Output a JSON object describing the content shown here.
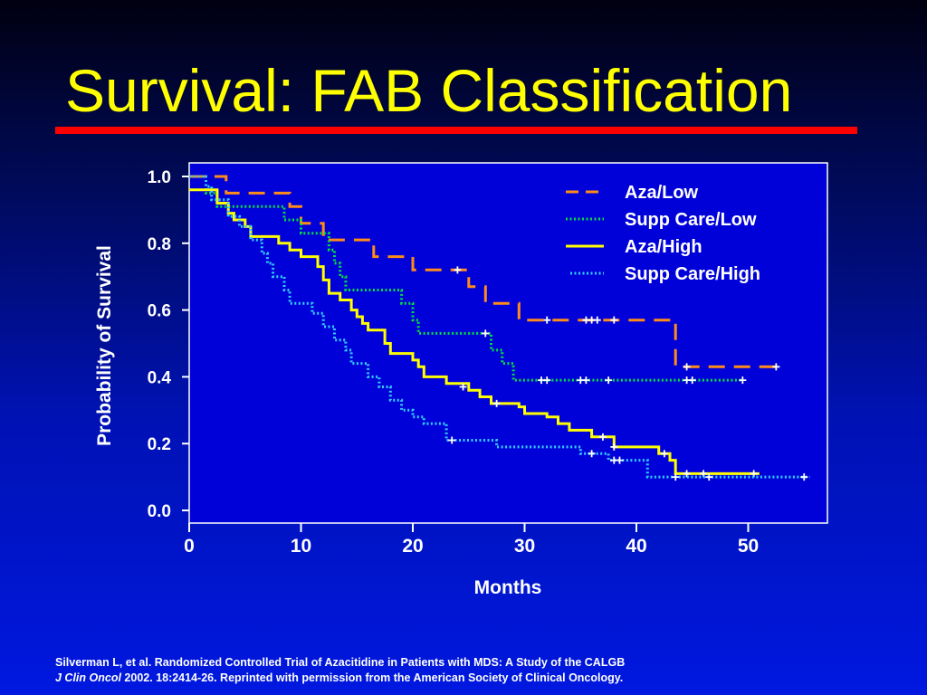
{
  "slide": {
    "title": "Survival: FAB Classification",
    "citation_line1": "Silverman L, et al. Randomized Controlled Trial of Azacitidine in Patients with MDS: A Study of the CALGB",
    "citation_journal": "J Clin Oncol",
    "citation_line2_rest": " 2002. 18:2414-26. Reprinted with permission from the American Society of Clinical Oncology."
  },
  "colors": {
    "title": "#ffff00",
    "rule": "#ff0000",
    "plot_bg": "#0000d8",
    "axis": "#ffffff"
  },
  "chart_data": {
    "type": "line",
    "xlabel": "Months",
    "ylabel": "Probability of Survival",
    "xlim": [
      0,
      57
    ],
    "ylim": [
      0,
      1.04
    ],
    "x_ticks": [
      0,
      10,
      20,
      30,
      40,
      50
    ],
    "y_ticks": [
      "0.0",
      "0.2",
      "0.4",
      "0.6",
      "0.8",
      "1.0"
    ],
    "grid": false,
    "legend_position": "top-right",
    "series": [
      {
        "name": "Aza/Low",
        "color": "#ff8c1a",
        "style": "dash",
        "points": [
          [
            0,
            1.0
          ],
          [
            3.3,
            1.0
          ],
          [
            3.3,
            0.95
          ],
          [
            9,
            0.95
          ],
          [
            9,
            0.91
          ],
          [
            10,
            0.91
          ],
          [
            10,
            0.86
          ],
          [
            12,
            0.86
          ],
          [
            12,
            0.81
          ],
          [
            16.5,
            0.81
          ],
          [
            16.5,
            0.76
          ],
          [
            20,
            0.76
          ],
          [
            20,
            0.72
          ],
          [
            25,
            0.72
          ],
          [
            25,
            0.67
          ],
          [
            26.5,
            0.67
          ],
          [
            26.5,
            0.62
          ],
          [
            29.5,
            0.62
          ],
          [
            29.5,
            0.57
          ],
          [
            43.5,
            0.57
          ],
          [
            43.5,
            0.43
          ],
          [
            53,
            0.43
          ]
        ],
        "censored": [
          [
            24,
            0.72
          ],
          [
            32,
            0.57
          ],
          [
            35.5,
            0.57
          ],
          [
            36,
            0.57
          ],
          [
            36.5,
            0.57
          ],
          [
            38,
            0.57
          ],
          [
            44.5,
            0.43
          ],
          [
            52.5,
            0.43
          ]
        ]
      },
      {
        "name": "Supp Care/Low",
        "color": "#00e040",
        "style": "dot",
        "points": [
          [
            0,
            1.0
          ],
          [
            1.5,
            1.0
          ],
          [
            1.5,
            0.95
          ],
          [
            2.5,
            0.95
          ],
          [
            2.5,
            0.91
          ],
          [
            8.5,
            0.91
          ],
          [
            8.5,
            0.87
          ],
          [
            10,
            0.87
          ],
          [
            10,
            0.83
          ],
          [
            12.5,
            0.83
          ],
          [
            12.5,
            0.78
          ],
          [
            13,
            0.78
          ],
          [
            13,
            0.74
          ],
          [
            13.5,
            0.74
          ],
          [
            13.5,
            0.7
          ],
          [
            14,
            0.7
          ],
          [
            14,
            0.66
          ],
          [
            19,
            0.66
          ],
          [
            19,
            0.62
          ],
          [
            20,
            0.62
          ],
          [
            20,
            0.57
          ],
          [
            20.5,
            0.57
          ],
          [
            20.5,
            0.53
          ],
          [
            27,
            0.53
          ],
          [
            27,
            0.48
          ],
          [
            28,
            0.48
          ],
          [
            28,
            0.44
          ],
          [
            29,
            0.44
          ],
          [
            29,
            0.39
          ],
          [
            49.5,
            0.39
          ]
        ],
        "censored": [
          [
            26.5,
            0.53
          ],
          [
            31.5,
            0.39
          ],
          [
            32,
            0.39
          ],
          [
            35,
            0.39
          ],
          [
            35.5,
            0.39
          ],
          [
            37.5,
            0.39
          ],
          [
            44.5,
            0.39
          ],
          [
            45,
            0.39
          ],
          [
            49.5,
            0.39
          ]
        ]
      },
      {
        "name": "Aza/High",
        "color": "#ffff00",
        "style": "solid",
        "points": [
          [
            0,
            0.96
          ],
          [
            2.5,
            0.96
          ],
          [
            2.5,
            0.92
          ],
          [
            3.5,
            0.92
          ],
          [
            3.5,
            0.89
          ],
          [
            4,
            0.89
          ],
          [
            4,
            0.87
          ],
          [
            5,
            0.87
          ],
          [
            5,
            0.85
          ],
          [
            5.5,
            0.85
          ],
          [
            5.5,
            0.82
          ],
          [
            8,
            0.82
          ],
          [
            8,
            0.8
          ],
          [
            9,
            0.8
          ],
          [
            9,
            0.78
          ],
          [
            10,
            0.78
          ],
          [
            10,
            0.76
          ],
          [
            11.5,
            0.76
          ],
          [
            11.5,
            0.73
          ],
          [
            12,
            0.73
          ],
          [
            12,
            0.69
          ],
          [
            12.5,
            0.69
          ],
          [
            12.5,
            0.65
          ],
          [
            13.5,
            0.65
          ],
          [
            13.5,
            0.63
          ],
          [
            14.5,
            0.63
          ],
          [
            14.5,
            0.6
          ],
          [
            15,
            0.6
          ],
          [
            15,
            0.58
          ],
          [
            15.5,
            0.58
          ],
          [
            15.5,
            0.56
          ],
          [
            16,
            0.56
          ],
          [
            16,
            0.54
          ],
          [
            17.5,
            0.54
          ],
          [
            17.5,
            0.5
          ],
          [
            18,
            0.5
          ],
          [
            18,
            0.47
          ],
          [
            20,
            0.47
          ],
          [
            20,
            0.45
          ],
          [
            20.5,
            0.45
          ],
          [
            20.5,
            0.43
          ],
          [
            21,
            0.43
          ],
          [
            21,
            0.4
          ],
          [
            23,
            0.4
          ],
          [
            23,
            0.38
          ],
          [
            25,
            0.38
          ],
          [
            25,
            0.36
          ],
          [
            26,
            0.36
          ],
          [
            26,
            0.34
          ],
          [
            27,
            0.34
          ],
          [
            27,
            0.32
          ],
          [
            29.5,
            0.32
          ],
          [
            29.5,
            0.31
          ],
          [
            30,
            0.31
          ],
          [
            30,
            0.29
          ],
          [
            32,
            0.29
          ],
          [
            32,
            0.28
          ],
          [
            33,
            0.28
          ],
          [
            33,
            0.26
          ],
          [
            34,
            0.26
          ],
          [
            34,
            0.24
          ],
          [
            36,
            0.24
          ],
          [
            36,
            0.22
          ],
          [
            38,
            0.22
          ],
          [
            38,
            0.19
          ],
          [
            42,
            0.19
          ],
          [
            42,
            0.17
          ],
          [
            43,
            0.17
          ],
          [
            43,
            0.15
          ],
          [
            43.5,
            0.15
          ],
          [
            43.5,
            0.11
          ],
          [
            51,
            0.11
          ]
        ],
        "censored": [
          [
            24.5,
            0.37
          ],
          [
            27.5,
            0.32
          ],
          [
            37,
            0.22
          ],
          [
            38,
            0.19
          ],
          [
            42.5,
            0.17
          ],
          [
            44.5,
            0.11
          ],
          [
            46,
            0.11
          ],
          [
            50.5,
            0.11
          ]
        ]
      },
      {
        "name": "Supp Care/High",
        "color": "#33ccff",
        "style": "dot",
        "points": [
          [
            0,
            1.0
          ],
          [
            1.5,
            1.0
          ],
          [
            1.5,
            0.97
          ],
          [
            2,
            0.97
          ],
          [
            2,
            0.93
          ],
          [
            3.5,
            0.93
          ],
          [
            3.5,
            0.88
          ],
          [
            4.5,
            0.88
          ],
          [
            4.5,
            0.85
          ],
          [
            5.5,
            0.85
          ],
          [
            5.5,
            0.81
          ],
          [
            6.5,
            0.81
          ],
          [
            6.5,
            0.77
          ],
          [
            7,
            0.77
          ],
          [
            7,
            0.74
          ],
          [
            7.5,
            0.74
          ],
          [
            7.5,
            0.7
          ],
          [
            8.5,
            0.7
          ],
          [
            8.5,
            0.66
          ],
          [
            9,
            0.66
          ],
          [
            9,
            0.62
          ],
          [
            11,
            0.62
          ],
          [
            11,
            0.59
          ],
          [
            12,
            0.59
          ],
          [
            12,
            0.55
          ],
          [
            13,
            0.55
          ],
          [
            13,
            0.51
          ],
          [
            14,
            0.51
          ],
          [
            14,
            0.48
          ],
          [
            14.5,
            0.48
          ],
          [
            14.5,
            0.44
          ],
          [
            16,
            0.44
          ],
          [
            16,
            0.4
          ],
          [
            17,
            0.4
          ],
          [
            17,
            0.37
          ],
          [
            18,
            0.37
          ],
          [
            18,
            0.33
          ],
          [
            19,
            0.33
          ],
          [
            19,
            0.3
          ],
          [
            20,
            0.3
          ],
          [
            20,
            0.28
          ],
          [
            21,
            0.28
          ],
          [
            21,
            0.26
          ],
          [
            23,
            0.26
          ],
          [
            23,
            0.21
          ],
          [
            27.5,
            0.21
          ],
          [
            27.5,
            0.19
          ],
          [
            35,
            0.19
          ],
          [
            35,
            0.17
          ],
          [
            37.5,
            0.17
          ],
          [
            37.5,
            0.15
          ],
          [
            41,
            0.15
          ],
          [
            41,
            0.1
          ],
          [
            55.5,
            0.1
          ]
        ],
        "censored": [
          [
            23.5,
            0.21
          ],
          [
            36,
            0.17
          ],
          [
            38,
            0.15
          ],
          [
            38.5,
            0.15
          ],
          [
            43.5,
            0.1
          ],
          [
            46.5,
            0.1
          ],
          [
            55,
            0.1
          ]
        ]
      }
    ]
  }
}
